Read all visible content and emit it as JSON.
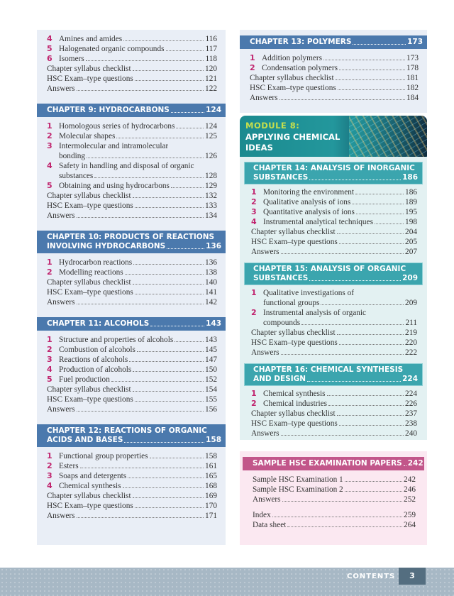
{
  "left": [
    {
      "header": null,
      "entries": [
        {
          "n": "4",
          "t": "Amines and amides",
          "p": "116"
        },
        {
          "n": "5",
          "t": "Halogenated organic compounds",
          "p": "117"
        },
        {
          "n": "6",
          "t": "Isomers",
          "p": "118"
        },
        {
          "t": "Chapter syllabus checklist",
          "p": "120"
        },
        {
          "t": "HSC Exam–type questions",
          "p": "121"
        },
        {
          "t": "Answers",
          "p": "122"
        }
      ]
    },
    {
      "header": {
        "l1": "",
        "l2": "CHAPTER 9: HYDROCARBONS",
        "p": "124"
      },
      "entries": [
        {
          "n": "1",
          "t": "Homologous series of hydrocarbons",
          "p": "124"
        },
        {
          "n": "2",
          "t": "Molecular shapes",
          "p": "125"
        },
        {
          "n": "3",
          "t1": "Intermolecular and intramolecular",
          "t": "bonding",
          "p": "126"
        },
        {
          "n": "4",
          "t1": "Safety in handling and disposal of organic",
          "t": "substances",
          "p": "128"
        },
        {
          "n": "5",
          "t": "Obtaining and using hydrocarbons",
          "p": "129"
        },
        {
          "t": "Chapter syllabus checklist",
          "p": "132"
        },
        {
          "t": "HSC Exam–type questions",
          "p": "133"
        },
        {
          "t": "Answers",
          "p": "134"
        }
      ]
    },
    {
      "header": {
        "l1": "CHAPTER 10: PRODUCTS OF REACTIONS",
        "l2": "INVOLVING HYDROCARBONS",
        "p": "136"
      },
      "entries": [
        {
          "n": "1",
          "t": "Hydrocarbon reactions",
          "p": "136"
        },
        {
          "n": "2",
          "t": "Modelling reactions",
          "p": "138"
        },
        {
          "t": "Chapter syllabus checklist",
          "p": "140"
        },
        {
          "t": "HSC Exam–type questions",
          "p": "141"
        },
        {
          "t": "Answers",
          "p": "142"
        }
      ]
    },
    {
      "header": {
        "l1": "",
        "l2": "CHAPTER 11: ALCOHOLS",
        "p": "143"
      },
      "entries": [
        {
          "n": "1",
          "t": "Structure and properties of alcohols",
          "p": "143"
        },
        {
          "n": "2",
          "t": "Combustion of alcohols",
          "p": "145"
        },
        {
          "n": "3",
          "t": "Reactions of alcohols",
          "p": "147"
        },
        {
          "n": "4",
          "t": "Production of alcohols",
          "p": "150"
        },
        {
          "n": "5",
          "t": "Fuel production",
          "p": "152"
        },
        {
          "t": "Chapter syllabus checklist",
          "p": "154"
        },
        {
          "t": "HSC Exam–type questions",
          "p": "155"
        },
        {
          "t": "Answers",
          "p": "156"
        }
      ]
    },
    {
      "header": {
        "l1": "CHAPTER 12: REACTIONS OF ORGANIC",
        "l2": "ACIDS AND BASES",
        "p": "158"
      },
      "entries": [
        {
          "n": "1",
          "t": "Functional group properties",
          "p": "158"
        },
        {
          "n": "2",
          "t": "Esters",
          "p": "161"
        },
        {
          "n": "3",
          "t": "Soaps and detergents",
          "p": "165"
        },
        {
          "n": "4",
          "t": "Chemical synthesis",
          "p": "168"
        },
        {
          "t": "Chapter syllabus checklist",
          "p": "169"
        },
        {
          "t": "HSC Exam–type questions",
          "p": "170"
        },
        {
          "t": "Answers",
          "p": "171"
        }
      ]
    }
  ],
  "right_top": [
    {
      "header": {
        "l1": "",
        "l2": "CHAPTER 13: POLYMERS",
        "p": "173"
      },
      "entries": [
        {
          "n": "1",
          "t": "Addition polymers",
          "p": "173"
        },
        {
          "n": "2",
          "t": "Condensation polymers",
          "p": "178"
        },
        {
          "t": "Chapter syllabus checklist",
          "p": "181"
        },
        {
          "t": "HSC Exam–type questions",
          "p": "182"
        },
        {
          "t": "Answers",
          "p": "184"
        }
      ]
    }
  ],
  "module": {
    "label": "MODULE 8:",
    "title": "APPLYING CHEMICAL IDEAS"
  },
  "module_chapters": [
    {
      "header": {
        "l1": "CHAPTER 14: ANALYSIS OF INORGANIC",
        "l2": "SUBSTANCES",
        "p": "186"
      },
      "entries": [
        {
          "n": "1",
          "t": "Monitoring the environment",
          "p": "186"
        },
        {
          "n": "2",
          "t": "Qualitative analysis of ions",
          "p": "189"
        },
        {
          "n": "3",
          "t": "Quantitative analysis of ions",
          "p": "195"
        },
        {
          "n": "4",
          "t": "Instrumental analytical techniques",
          "p": "198"
        },
        {
          "t": "Chapter syllabus checklist",
          "p": "204"
        },
        {
          "t": "HSC Exam–type questions",
          "p": "205"
        },
        {
          "t": "Answers",
          "p": "207"
        }
      ]
    },
    {
      "header": {
        "l1": "CHAPTER 15: ANALYSIS OF ORGANIC",
        "l2": "SUBSTANCES",
        "p": "209"
      },
      "entries": [
        {
          "n": "1",
          "t1": "Qualitative investigations of",
          "t": "functional groups",
          "p": "209"
        },
        {
          "n": "2",
          "t1": "Instrumental analysis of organic",
          "t": "compounds",
          "p": "211"
        },
        {
          "t": "Chapter syllabus checklist",
          "p": "219"
        },
        {
          "t": "HSC Exam–type questions",
          "p": "220"
        },
        {
          "t": "Answers",
          "p": "222"
        }
      ]
    },
    {
      "header": {
        "l1": "CHAPTER 16: CHEMICAL SYNTHESIS",
        "l2": "AND DESIGN",
        "p": "224"
      },
      "entries": [
        {
          "n": "1",
          "t": "Chemical synthesis",
          "p": "224"
        },
        {
          "n": "2",
          "t": "Chemical industries",
          "p": "226"
        },
        {
          "t": "Chapter syllabus checklist",
          "p": "237"
        },
        {
          "t": "HSC Exam–type questions",
          "p": "238"
        },
        {
          "t": "Answers",
          "p": "240"
        }
      ]
    }
  ],
  "samples": [
    {
      "header": {
        "l1": "",
        "l2": "SAMPLE HSC EXAMINATION PAPERS",
        "p": "242"
      },
      "entries": [
        {
          "t": "Sample HSC Examination 1",
          "p": "242"
        },
        {
          "t": "Sample HSC Examination 2",
          "p": "246"
        },
        {
          "t": "Answers",
          "p": "252"
        },
        {
          "gap": true,
          "t": "Index",
          "p": "259"
        },
        {
          "t": "Data sheet",
          "p": "264"
        }
      ]
    }
  ],
  "footer": {
    "label": "CONTENTS",
    "page": "3"
  },
  "colors": {
    "chapter_blue": "#4b79ad",
    "chapter_teal": "#3ba5ae",
    "samples_pink": "#c2568a",
    "number_magenta": "#c0246e",
    "module_yellow": "#c6df4c"
  }
}
